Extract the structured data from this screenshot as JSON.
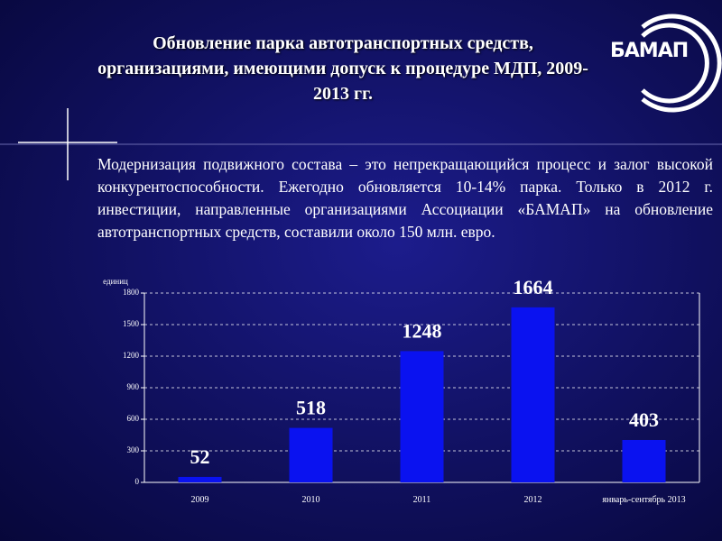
{
  "header": {
    "title": "Обновление парка автотранспортных средств, организациями, имеющими допуск к процедуре МДП, 2009-2013 гг.",
    "logo": "БАМАП"
  },
  "body": "Модернизация подвижного состава – это непрекращающийся процесс и залог высокой конкурентоспособности. Ежегодно обновляется 10-14% парка. Только в 2012 г. инвестиции, направленные организациями Ассоциации «БАМАП» на обновление автотранспортных средств, составили около 150 млн. евро.",
  "chart_data": {
    "type": "bar",
    "y_label": "единиц",
    "categories": [
      "2009",
      "2010",
      "2011",
      "2012",
      "январь-сентябрь 2013"
    ],
    "values": [
      52,
      518,
      1248,
      1664,
      403
    ],
    "color": "#0a12f0",
    "ylim": [
      0,
      1800
    ],
    "yticks": [
      0,
      300,
      600,
      900,
      1200,
      1500,
      1800
    ],
    "grid": true
  }
}
